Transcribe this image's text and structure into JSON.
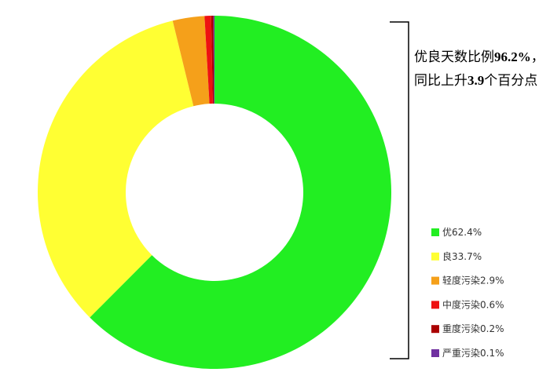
{
  "chart_data": {
    "type": "donut",
    "categories": [
      "优",
      "良",
      "轻度污染",
      "中度污染",
      "重度污染",
      "严重污染"
    ],
    "values": [
      62.4,
      33.7,
      2.9,
      0.6,
      0.2,
      0.1
    ],
    "value_labels": [
      "62.4%",
      "33.7%",
      "2.9%",
      "0.6%",
      "0.2%",
      "0.1%"
    ],
    "colors": [
      "#22ee22",
      "#ffff33",
      "#f5a01a",
      "#ee1111",
      "#aa0000",
      "#7030a0"
    ],
    "annotation": [
      [
        "优良天数比例",
        "96.2%",
        "，"
      ],
      [
        "同比上升",
        "3.9",
        "个百分点"
      ]
    ]
  }
}
